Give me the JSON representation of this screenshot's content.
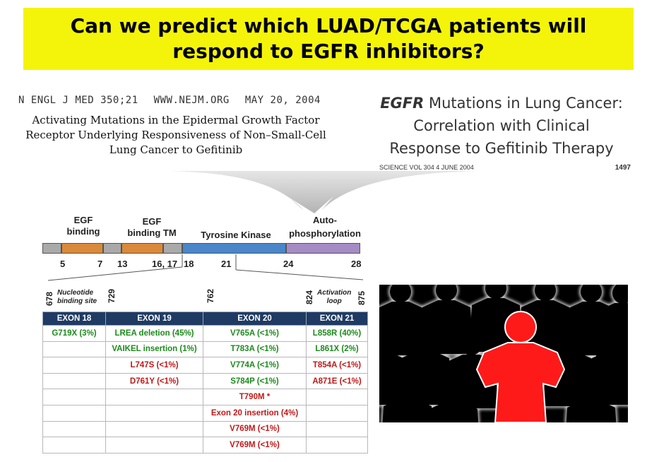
{
  "banner": {
    "line1": "Can we predict which LUAD/TCGA patients will",
    "line2": "respond to EGFR inhibitors?"
  },
  "nejm": {
    "journal": "N ENGL J MED 350;21",
    "url": "WWW.NEJM.ORG",
    "date": "MAY 20, 2004",
    "title_line1": "Activating Mutations in the Epidermal Growth Factor",
    "title_line2": "Receptor Underlying Responsiveness of Non–Small-Cell",
    "title_line3": "Lung Cancer to Gefitinib"
  },
  "science": {
    "title_italic": "EGFR",
    "title_line1_rest": " Mutations in Lung Cancer:",
    "title_line2": "Correlation with Clinical",
    "title_line3": "Response to Gefitinib Therapy",
    "footer_left": "SCIENCE   VOL 304   4 JUNE 2004",
    "footer_page": "1497"
  },
  "domains": {
    "egf1_line1": "EGF",
    "egf1_line2": "binding",
    "egf2_line1": "EGF",
    "egf2_line2": "binding TM",
    "tk": "Tyrosine Kinase",
    "auto_line1": "Auto-",
    "auto_line2": "phosphorylation",
    "exon_numbers": [
      "5",
      "7",
      "13",
      "16, 17",
      "18",
      "21",
      "24",
      "28"
    ],
    "colors": {
      "grey": "#a9a9a9",
      "orange": "#d98a3a",
      "blue": "#4a86c8",
      "purple": "#a48cc4"
    }
  },
  "kinase_detail": {
    "pos_678": "678",
    "pos_729": "729",
    "pos_762": "762",
    "pos_824": "824",
    "pos_875": "875",
    "nucleotide_line1": "Nucleotide",
    "nucleotide_line2": "binding site",
    "activation_line1": "Activation",
    "activation_line2": "loop"
  },
  "table": {
    "headers": [
      "EXON 18",
      "EXON 19",
      "EXON 20",
      "EXON 21"
    ],
    "rows": [
      [
        {
          "text": "G719X (3%)",
          "color": "g"
        },
        {
          "text": "LREA deletion (45%)",
          "color": "g"
        },
        {
          "text": "V765A (<1%)",
          "color": "g"
        },
        {
          "text": "L858R (40%)",
          "color": "g"
        }
      ],
      [
        {
          "text": "",
          "color": ""
        },
        {
          "text": "VAIKEL insertion (1%)",
          "color": "g"
        },
        {
          "text": "T783A (<1%)",
          "color": "g"
        },
        {
          "text": "L861X (2%)",
          "color": "g"
        }
      ],
      [
        {
          "text": "",
          "color": ""
        },
        {
          "text": "L747S (<1%)",
          "color": "r"
        },
        {
          "text": "V774A (<1%)",
          "color": "g"
        },
        {
          "text": "T854A (<1%)",
          "color": "r"
        }
      ],
      [
        {
          "text": "",
          "color": ""
        },
        {
          "text": "D761Y (<1%)",
          "color": "r"
        },
        {
          "text": "S784P (<1%)",
          "color": "g"
        },
        {
          "text": "A871E (<1%)",
          "color": "r"
        }
      ],
      [
        {
          "text": "",
          "color": ""
        },
        {
          "text": "",
          "color": ""
        },
        {
          "text": "T790M *",
          "color": "r"
        },
        {
          "text": "",
          "color": ""
        }
      ],
      [
        {
          "text": "",
          "color": ""
        },
        {
          "text": "",
          "color": ""
        },
        {
          "text": "Exon 20 insertion (4%)",
          "color": "r"
        },
        {
          "text": "",
          "color": ""
        }
      ],
      [
        {
          "text": "",
          "color": ""
        },
        {
          "text": "",
          "color": ""
        },
        {
          "text": "V769M (<1%)",
          "color": "r"
        },
        {
          "text": "",
          "color": ""
        }
      ],
      [
        {
          "text": "",
          "color": ""
        },
        {
          "text": "",
          "color": ""
        },
        {
          "text": "V769M (<1%)",
          "color": "r"
        },
        {
          "text": "",
          "color": ""
        }
      ]
    ]
  },
  "crowd_image": {
    "highlight_color": "#ff1a1a",
    "icon": "crowd-highlighted-person-icon"
  }
}
